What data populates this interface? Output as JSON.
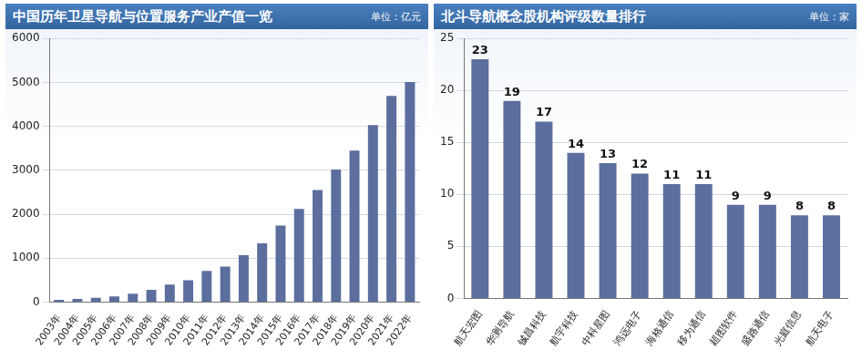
{
  "chart_data": [
    {
      "type": "bar",
      "title": "中国历年卫星导航与位置服务产业产值一览",
      "subtitle": "单位：亿元",
      "categories": [
        "2003年",
        "2004年",
        "2005年",
        "2006年",
        "2007年",
        "2008年",
        "2009年",
        "2010年",
        "2011年",
        "2012年",
        "2013年",
        "2014年",
        "2015年",
        "2016年",
        "2017年",
        "2018年",
        "2019年",
        "2020年",
        "2021年",
        "2022年"
      ],
      "values": [
        50,
        70,
        100,
        130,
        190,
        280,
        400,
        500,
        710,
        810,
        1070,
        1340,
        1740,
        2120,
        2550,
        3020,
        3450,
        4030,
        4690,
        5010
      ],
      "color": "#5b6e9e",
      "ylim": [
        0,
        6000
      ],
      "yticks": [
        0,
        1000,
        2000,
        3000,
        4000,
        5000,
        6000
      ],
      "grid": true,
      "data_labels": false
    },
    {
      "type": "bar",
      "title": "北斗导航概念股机构评级数量排行",
      "subtitle": "单位：家",
      "categories": [
        "航天宏图",
        "华测导航",
        "铖昌科技",
        "航宇科技",
        "中科星图",
        "鸿远电子",
        "海格通信",
        "移为通信",
        "超图软件",
        "盛路通信",
        "光庭信息",
        "航天电子"
      ],
      "values": [
        23,
        19,
        17,
        14,
        13,
        12,
        11,
        11,
        9,
        9,
        8,
        8
      ],
      "color": "#5b6e9e",
      "ylim": [
        0,
        25
      ],
      "yticks": [
        0,
        5,
        10,
        15,
        20,
        25
      ],
      "grid": true,
      "data_labels": true
    }
  ]
}
